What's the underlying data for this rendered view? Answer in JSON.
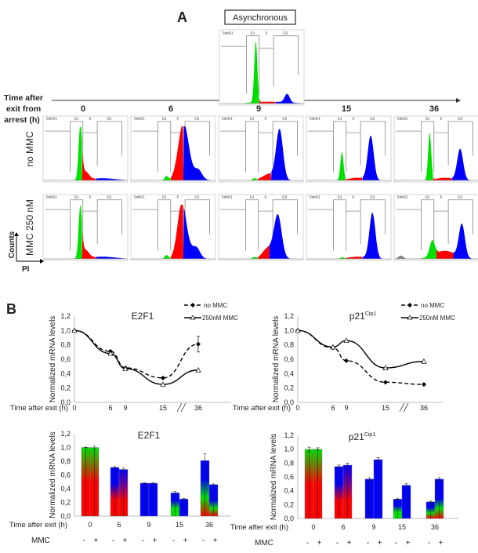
{
  "panel_a": {
    "label": "A",
    "asynchronous_label": "Asynchronous",
    "time_axis_label": [
      "Time after",
      "exit from",
      "arrest (h)"
    ],
    "timepoints": [
      "0",
      "6",
      "9",
      "15",
      "36"
    ],
    "rows": [
      "no MMC",
      "MMC 250 nM"
    ],
    "gates": {
      "subg1": "SubG1",
      "g1": "G1",
      "s": "S",
      "g2": "G2"
    },
    "y_axis": "Counts",
    "x_axis": "PI",
    "phase_colors": {
      "G1": "#00e000",
      "S": "#ff0000",
      "G2": "#0000ff",
      "SubG1": "#808080"
    }
  },
  "panel_b": {
    "label": "B"
  },
  "chart_data": [
    {
      "type": "line",
      "title": "E2F1",
      "ylabel": "Normalized mRNA levels",
      "xlabel": "Time after exit (h)",
      "x": [
        0,
        6,
        9,
        15,
        36
      ],
      "ylim": [
        0,
        1.2
      ],
      "yticks": [
        "0,0",
        "0,2",
        "0,4",
        "0,6",
        "0,8",
        "1,0",
        "1,2"
      ],
      "axis_break": "between 15 and 36",
      "series": [
        {
          "name": "no MMC",
          "style": "dashed, filled diamond",
          "values": [
            1.0,
            0.71,
            0.48,
            0.34,
            0.81
          ],
          "error": [
            0,
            0,
            0,
            0,
            0.11
          ]
        },
        {
          "name": "250nM MMC",
          "style": "solid, open triangle",
          "values": [
            1.0,
            0.68,
            0.47,
            0.25,
            0.45
          ]
        }
      ]
    },
    {
      "type": "line",
      "title": "p21",
      "title_sup": "Cip1",
      "ylabel": "Normalized mRNA levels",
      "xlabel": "Time after exit (h)",
      "x": [
        0,
        6,
        9,
        15,
        36
      ],
      "ylim": [
        0,
        1.2
      ],
      "yticks": [
        "0,0",
        "0,2",
        "0,4",
        "0,6",
        "0,8",
        "1,0",
        "1,2"
      ],
      "axis_break": "between 15 and 36",
      "series": [
        {
          "name": "no MMC",
          "style": "dashed, filled diamond",
          "values": [
            1.0,
            0.76,
            0.58,
            0.28,
            0.25
          ]
        },
        {
          "name": "250nM MMC",
          "style": "solid, open triangle",
          "values": [
            1.0,
            0.77,
            0.86,
            0.48,
            0.57
          ]
        }
      ]
    },
    {
      "type": "bar",
      "title": "E2F1",
      "ylabel": "Normalized mRNA levels",
      "xlabel": "Time after exit (h)",
      "row_label": "MMC",
      "categories": [
        "0",
        "6",
        "9",
        "15",
        "36"
      ],
      "ylim": [
        0,
        1.2
      ],
      "yticks": [
        "0,0",
        "0,2",
        "0,4",
        "0,6",
        "0,8",
        "1,0",
        "1,2"
      ],
      "series": [
        {
          "mmc": "-",
          "values": [
            1.0,
            0.71,
            0.48,
            0.34,
            0.81
          ],
          "error": [
            0.005,
            0.01,
            0.005,
            0.02,
            0.1
          ],
          "fills": [
            [
              "#ff0000",
              "#ff0000",
              "#00e000"
            ],
            [
              "#ff0000",
              "#ff0000",
              "#0000ff",
              "#0000ff"
            ],
            [
              "#0000ff",
              "#0000ff"
            ],
            [
              "#00e000",
              "#00e000",
              "#0000ff",
              "#0000ff"
            ],
            [
              "#ff0000",
              "#00e000",
              "#0000ff",
              "#0000ff"
            ]
          ]
        },
        {
          "mmc": "+",
          "values": [
            1.0,
            0.68,
            0.48,
            0.25,
            0.46
          ],
          "error": [
            0.02,
            0.02,
            0.005,
            0.005,
            0.01
          ],
          "fills": [
            [
              "#ff0000",
              "#ff0000",
              "#00e000"
            ],
            [
              "#ff0000",
              "#ff0000",
              "#7000a0",
              "#0000ff"
            ],
            [
              "#0000ff",
              "#0000ff"
            ],
            [
              "#0000ff",
              "#0000ff"
            ],
            [
              "#ff0000",
              "#00e000",
              "#0000ff",
              "#0000ff",
              "#0000ff"
            ]
          ]
        }
      ]
    },
    {
      "type": "bar",
      "title": "p21",
      "title_sup": "Cip1",
      "ylabel": "Normalized mRNA levels",
      "xlabel": "Time after exit (h)",
      "row_label": "MMC",
      "categories": [
        "0",
        "6",
        "9",
        "15",
        "36"
      ],
      "ylim": [
        0,
        1.2
      ],
      "yticks": [
        "0,0",
        "0,2",
        "0,4",
        "0,6",
        "0,8",
        "1,0",
        "1,2"
      ],
      "series": [
        {
          "mmc": "-",
          "values": [
            1.0,
            0.75,
            0.57,
            0.28,
            0.24
          ],
          "error": [
            0.03,
            0.02,
            0.02,
            0.005,
            0.01
          ],
          "fills": [
            [
              "#ff0000",
              "#ff0000",
              "#00e000"
            ],
            [
              "#ff0000",
              "#ff0000",
              "#0000ff",
              "#0000ff"
            ],
            [
              "#0000ff",
              "#0000ff"
            ],
            [
              "#00e000",
              "#00e000",
              "#0000ff",
              "#0000ff"
            ],
            [
              "#ff0000",
              "#00e000",
              "#0000ff",
              "#0000ff"
            ]
          ]
        },
        {
          "mmc": "+",
          "values": [
            1.0,
            0.77,
            0.85,
            0.48,
            0.57
          ],
          "error": [
            0.02,
            0.03,
            0.03,
            0.02,
            0.02
          ],
          "fills": [
            [
              "#ff0000",
              "#ff0000",
              "#00e000"
            ],
            [
              "#ff0000",
              "#ff0000",
              "#7000a0",
              "#0000ff"
            ],
            [
              "#0000ff",
              "#0000ff"
            ],
            [
              "#0000ff",
              "#0000ff"
            ],
            [
              "#ff0000",
              "#00e000",
              "#0000ff",
              "#0000ff",
              "#0000ff"
            ]
          ]
        }
      ]
    }
  ]
}
